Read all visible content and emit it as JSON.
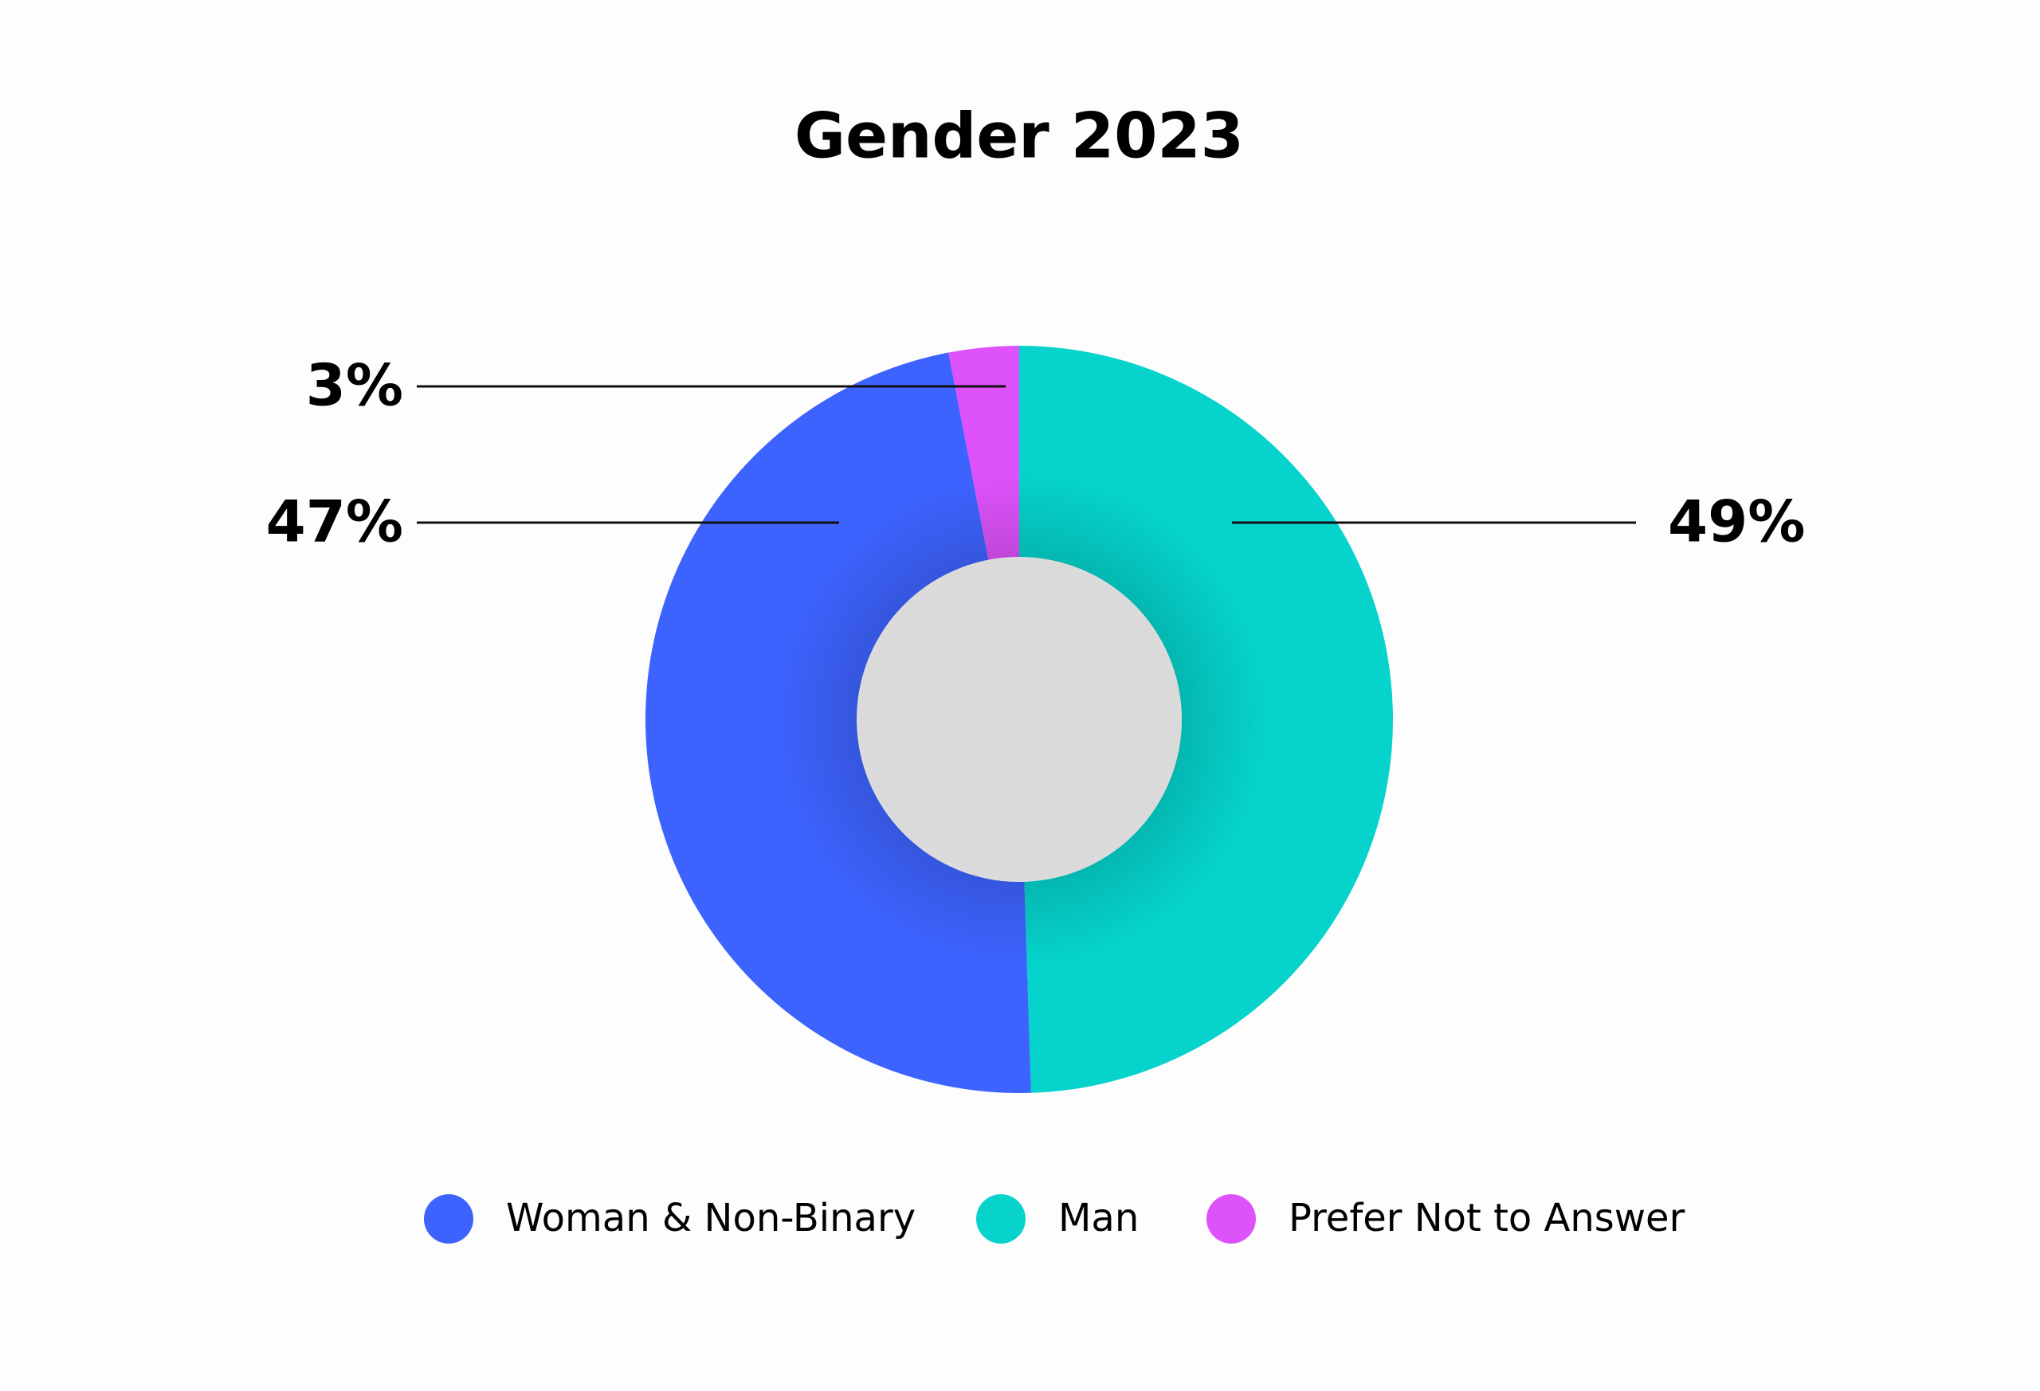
{
  "chart_data": {
    "type": "donut",
    "title": "Gender 2023",
    "categories": [
      "Woman & Non-Binary",
      "Man",
      "Prefer Not to Answer"
    ],
    "values": [
      47,
      49,
      3
    ],
    "value_labels": [
      "47%",
      "49%",
      "3%"
    ],
    "colors": [
      "#3d63ff",
      "#05d3cc",
      "#de52fb"
    ]
  }
}
